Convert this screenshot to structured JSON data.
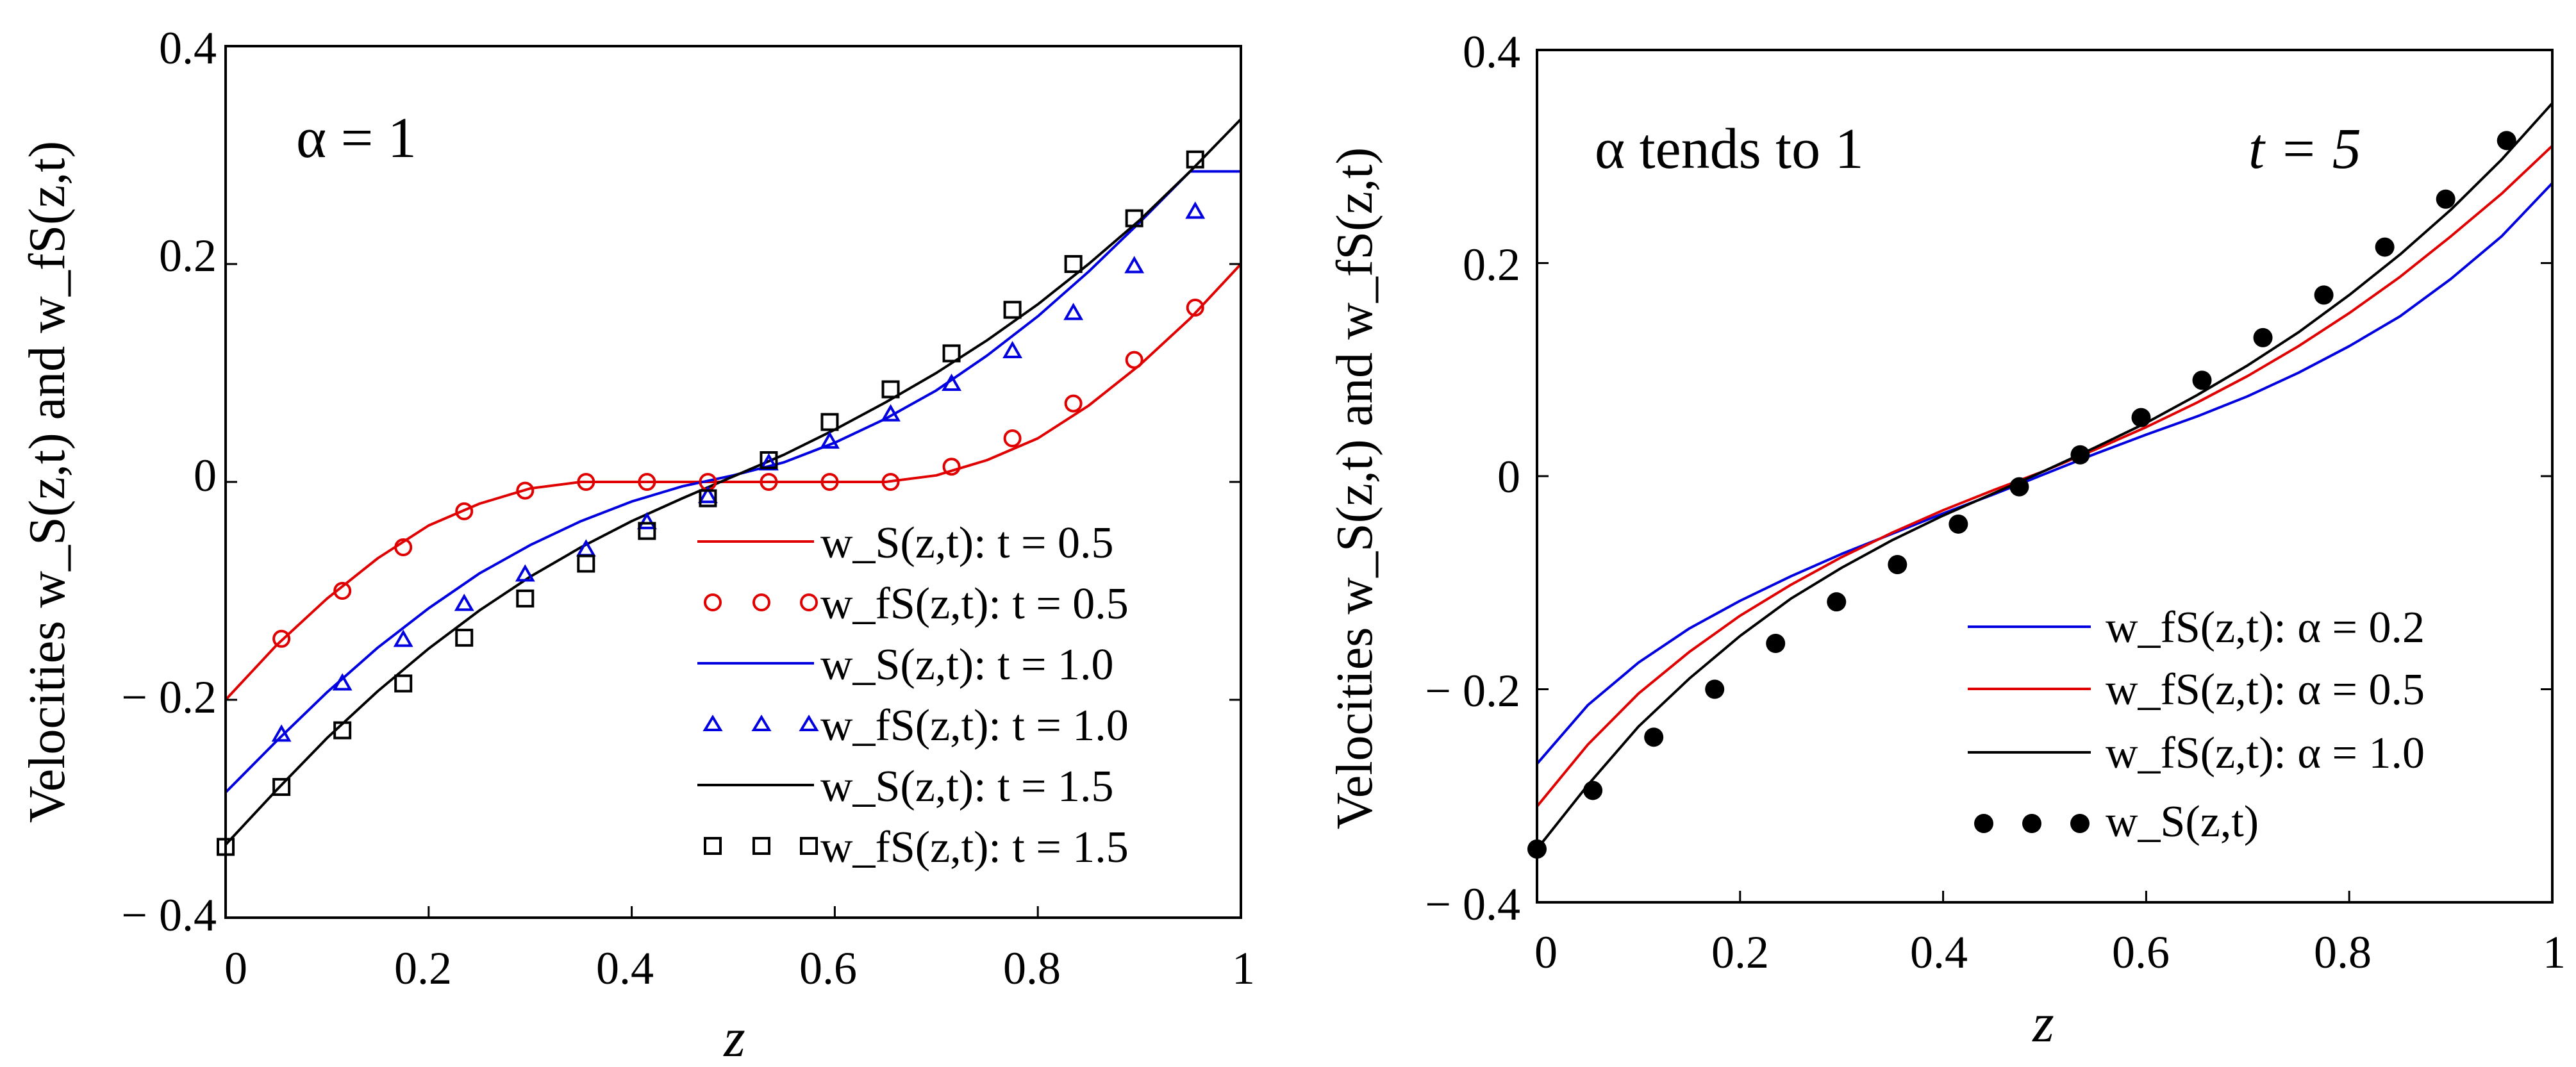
{
  "chart_data": [
    {
      "type": "line",
      "annotation": "α = 1",
      "xlabel": "z",
      "ylabel": "Velocities w_S(z,t) and w_fS(z,t)",
      "xlim": [
        0,
        1
      ],
      "ylim": [
        -0.4,
        0.4
      ],
      "x_ticks": [
        0,
        0.2,
        0.4,
        0.6,
        0.8,
        1
      ],
      "x_tick_labels": [
        "0",
        "0.2",
        "0.4",
        "0.6",
        "0.8",
        "1"
      ],
      "y_ticks": [
        -0.4,
        -0.2,
        0,
        0.2,
        0.4
      ],
      "y_tick_labels": [
        "− 0.4",
        "− 0.2",
        "0",
        "0.2",
        "0.4"
      ],
      "legend_position": "bottom-right",
      "curve_x": [
        0,
        0.05,
        0.1,
        0.15,
        0.2,
        0.25,
        0.3,
        0.35,
        0.4,
        0.45,
        0.5,
        0.55,
        0.6,
        0.65,
        0.7,
        0.75,
        0.8,
        0.85,
        0.9,
        0.95,
        1
      ],
      "series": [
        {
          "name": "w_S(z,t): t = 0.5",
          "legend": "w_S(z,t):  t = 0.5",
          "style": "line",
          "color": "#e00000",
          "values": [
            -0.2,
            -0.15,
            -0.107,
            -0.07,
            -0.04,
            -0.02,
            -0.006,
            0,
            0,
            0,
            0,
            0,
            0,
            0,
            0.006,
            0.02,
            0.04,
            0.07,
            0.107,
            0.15,
            0.2
          ]
        },
        {
          "name": "w_fS(z,t): t = 0.5",
          "legend": "w_fS(z,t): t = 0.5",
          "style": "marker",
          "marker": "circle",
          "color": "#e00000",
          "x": [
            0.055,
            0.115,
            0.175,
            0.235,
            0.295,
            0.355,
            0.415,
            0.475,
            0.535,
            0.595,
            0.655,
            0.715,
            0.775,
            0.835,
            0.895,
            0.955
          ],
          "values": [
            -0.144,
            -0.1,
            -0.06,
            -0.027,
            -0.008,
            0,
            0,
            0,
            0,
            0,
            0,
            0.014,
            0.04,
            0.072,
            0.112,
            0.16
          ]
        },
        {
          "name": "w_S(z,t): t = 1.0",
          "legend": "w_S(z,t):  t = 1.0",
          "style": "line",
          "color": "#0000e0",
          "values": [
            -0.285,
            -0.238,
            -0.193,
            -0.152,
            -0.116,
            -0.084,
            -0.058,
            -0.036,
            -0.018,
            -0.004,
            0.006,
            0.018,
            0.036,
            0.058,
            0.084,
            0.116,
            0.152,
            0.193,
            0.238,
            0.285,
            0.285
          ]
        },
        {
          "name": "w_fS(z,t): t = 1.0",
          "legend": "w_fS(z,t): t = 1.0",
          "style": "marker",
          "marker": "triangle",
          "color": "#0000e0",
          "x": [
            0.055,
            0.115,
            0.175,
            0.235,
            0.295,
            0.355,
            0.415,
            0.475,
            0.535,
            0.595,
            0.655,
            0.715,
            0.775,
            0.835,
            0.895,
            0.955
          ],
          "values": [
            -0.232,
            -0.185,
            -0.145,
            -0.112,
            -0.085,
            -0.062,
            -0.037,
            -0.013,
            0.017,
            0.037,
            0.062,
            0.09,
            0.12,
            0.155,
            0.198,
            0.248
          ]
        },
        {
          "name": "w_S(z,t): t = 1.5",
          "legend": "w_S(z,t):  t = 1.5",
          "style": "line",
          "color": "#000000",
          "values": [
            -0.333,
            -0.283,
            -0.235,
            -0.192,
            -0.153,
            -0.118,
            -0.087,
            -0.06,
            -0.036,
            -0.015,
            0.005,
            0.025,
            0.048,
            0.073,
            0.1,
            0.13,
            0.163,
            0.2,
            0.24,
            0.285,
            0.333
          ]
        },
        {
          "name": "w_fS(z,t): t = 1.5",
          "legend": "w_fS(z,t): t = 1.5",
          "style": "marker",
          "marker": "square",
          "color": "#000000",
          "x": [
            0,
            0.055,
            0.115,
            0.175,
            0.235,
            0.295,
            0.355,
            0.415,
            0.475,
            0.535,
            0.595,
            0.655,
            0.715,
            0.775,
            0.835,
            0.895,
            0.955
          ],
          "values": [
            -0.335,
            -0.28,
            -0.228,
            -0.185,
            -0.143,
            -0.107,
            -0.075,
            -0.045,
            -0.015,
            0.02,
            0.055,
            0.085,
            0.118,
            0.158,
            0.2,
            0.242,
            0.296
          ]
        }
      ]
    },
    {
      "type": "line",
      "annotation": "α tends to 1",
      "annotation2": "t = 5",
      "xlabel": "z",
      "ylabel": "Velocities w_S(z,t) and w_fS(z,t)",
      "xlim": [
        0,
        1
      ],
      "ylim": [
        -0.4,
        0.4
      ],
      "x_ticks": [
        0,
        0.2,
        0.4,
        0.6,
        0.8,
        1
      ],
      "x_tick_labels": [
        "0",
        "0.2",
        "0.4",
        "0.6",
        "0.8",
        "1"
      ],
      "y_ticks": [
        -0.4,
        -0.2,
        0,
        0.2,
        0.4
      ],
      "y_tick_labels": [
        "− 0.4",
        "− 0.2",
        "0",
        "0.2",
        "0.4"
      ],
      "legend_position": "bottom-right",
      "curve_x": [
        0,
        0.05,
        0.1,
        0.15,
        0.2,
        0.25,
        0.3,
        0.35,
        0.4,
        0.45,
        0.5,
        0.55,
        0.6,
        0.65,
        0.7,
        0.75,
        0.8,
        0.85,
        0.9,
        0.95,
        1
      ],
      "series": [
        {
          "name": "w_fS(z,t): α = 0.2",
          "legend": "w_fS(z,t): α = 0.2",
          "style": "line",
          "color": "#0000e0",
          "values": [
            -0.27,
            -0.215,
            -0.175,
            -0.143,
            -0.117,
            -0.094,
            -0.073,
            -0.054,
            -0.035,
            -0.017,
            0.002,
            0.021,
            0.039,
            0.056,
            0.075,
            0.097,
            0.122,
            0.15,
            0.185,
            0.225,
            0.275
          ]
        },
        {
          "name": "w_fS(z,t): α = 0.5",
          "legend": "w_fS(z,t): α = 0.5",
          "style": "line",
          "color": "#e00000",
          "values": [
            -0.31,
            -0.252,
            -0.204,
            -0.165,
            -0.131,
            -0.102,
            -0.076,
            -0.053,
            -0.032,
            -0.013,
            0.005,
            0.025,
            0.046,
            0.069,
            0.094,
            0.122,
            0.153,
            0.187,
            0.225,
            0.265,
            0.31
          ]
        },
        {
          "name": "w_fS(z,t): α = 1.0",
          "legend": "w_fS(z,t): α = 1.0",
          "style": "line",
          "color": "#000000",
          "values": [
            -0.35,
            -0.29,
            -0.235,
            -0.19,
            -0.15,
            -0.115,
            -0.086,
            -0.06,
            -0.037,
            -0.016,
            0.005,
            0.027,
            0.05,
            0.076,
            0.104,
            0.135,
            0.17,
            0.208,
            0.25,
            0.297,
            0.35
          ]
        },
        {
          "name": "w_S(z,t)",
          "legend": "w_S(z,t)",
          "style": "marker",
          "marker": "dot",
          "color": "#000000",
          "x": [
            0,
            0.055,
            0.115,
            0.175,
            0.235,
            0.295,
            0.355,
            0.415,
            0.475,
            0.535,
            0.595,
            0.655,
            0.715,
            0.775,
            0.835,
            0.895,
            0.955
          ],
          "values": [
            -0.35,
            -0.295,
            -0.245,
            -0.2,
            -0.157,
            -0.118,
            -0.083,
            -0.045,
            -0.01,
            0.02,
            0.055,
            0.09,
            0.13,
            0.17,
            0.215,
            0.26,
            0.315
          ]
        }
      ]
    }
  ]
}
